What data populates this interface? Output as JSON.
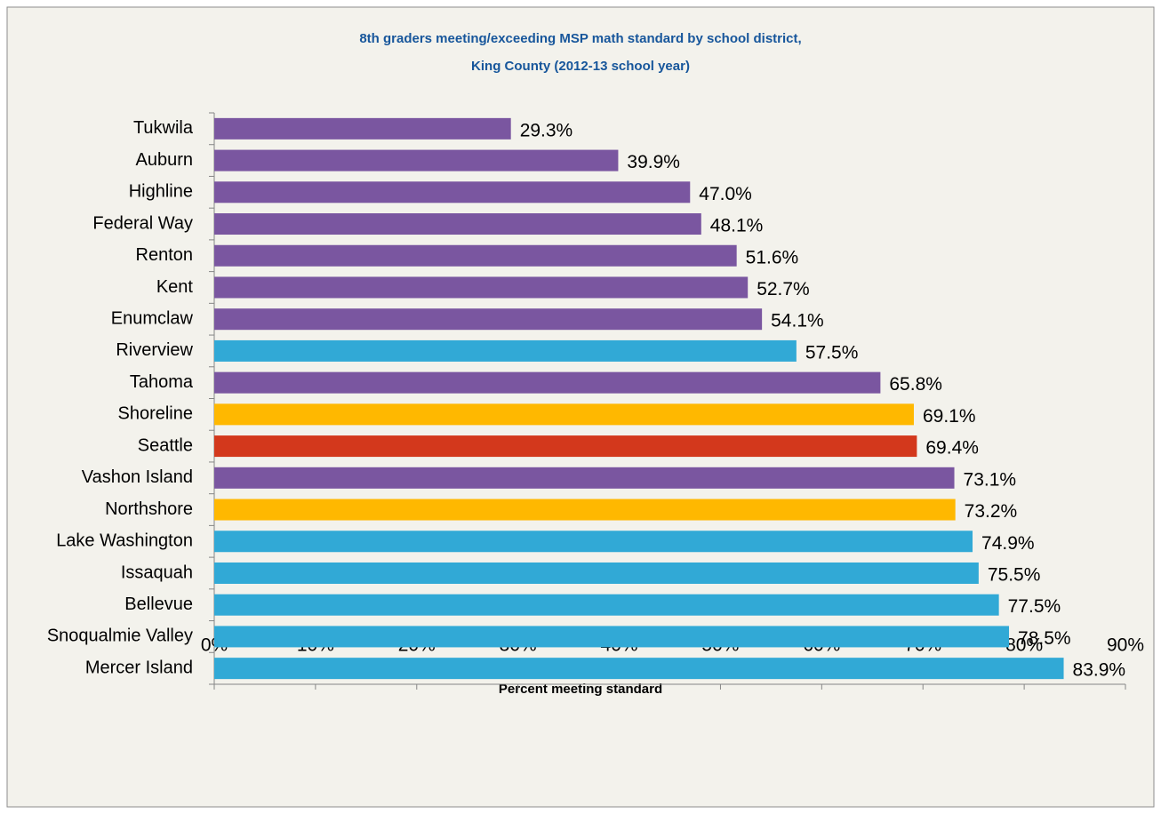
{
  "chart_data": {
    "type": "hbar",
    "title": [
      "8th graders meeting/exceeding MSP math standard by school district,",
      "King County (2012-13 school year)"
    ],
    "x_label": "Percent meeting standard",
    "categories": [
      "Tukwila",
      "Auburn",
      "Highline",
      "Federal Way",
      "Renton",
      "Kent",
      "Enumclaw",
      "Riverview",
      "Tahoma",
      "Shoreline",
      "Seattle",
      "Vashon Island",
      "Northshore",
      "Lake Washington",
      "Issaquah",
      "Bellevue",
      "Snoqualmie Valley",
      "Mercer Island"
    ],
    "values": [
      29.3,
      39.9,
      47.0,
      48.1,
      51.6,
      52.7,
      54.1,
      57.5,
      65.8,
      69.1,
      69.4,
      73.1,
      73.2,
      74.9,
      75.5,
      77.5,
      78.5,
      83.9
    ],
    "value_labels": [
      "29.3%",
      "39.9%",
      "47.0%",
      "48.1%",
      "51.6%",
      "52.7%",
      "54.1%",
      "57.5%",
      "65.8%",
      "69.1%",
      "69.4%",
      "73.1%",
      "73.2%",
      "74.9%",
      "75.5%",
      "77.5%",
      "78.5%",
      "83.9%"
    ],
    "colors": [
      "#7a56a0",
      "#7a56a0",
      "#7a56a0",
      "#7a56a0",
      "#7a56a0",
      "#7a56a0",
      "#7a56a0",
      "#31a9d6",
      "#7a56a0",
      "#ffb800",
      "#d3381c",
      "#7a56a0",
      "#ffb800",
      "#31a9d6",
      "#31a9d6",
      "#31a9d6",
      "#31a9d6",
      "#31a9d6"
    ],
    "xlim": [
      0,
      90
    ],
    "xticks": [
      {
        "value": 0,
        "label": "0%"
      },
      {
        "value": 10,
        "label": "10%"
      },
      {
        "value": 20,
        "label": "20%"
      },
      {
        "value": 30,
        "label": "30%"
      },
      {
        "value": 40,
        "label": "40%"
      },
      {
        "value": 50,
        "label": "50%"
      },
      {
        "value": 60,
        "label": "60%"
      },
      {
        "value": 70,
        "label": "70%"
      },
      {
        "value": 80,
        "label": "80%"
      },
      {
        "value": 90,
        "label": "90%"
      }
    ]
  }
}
